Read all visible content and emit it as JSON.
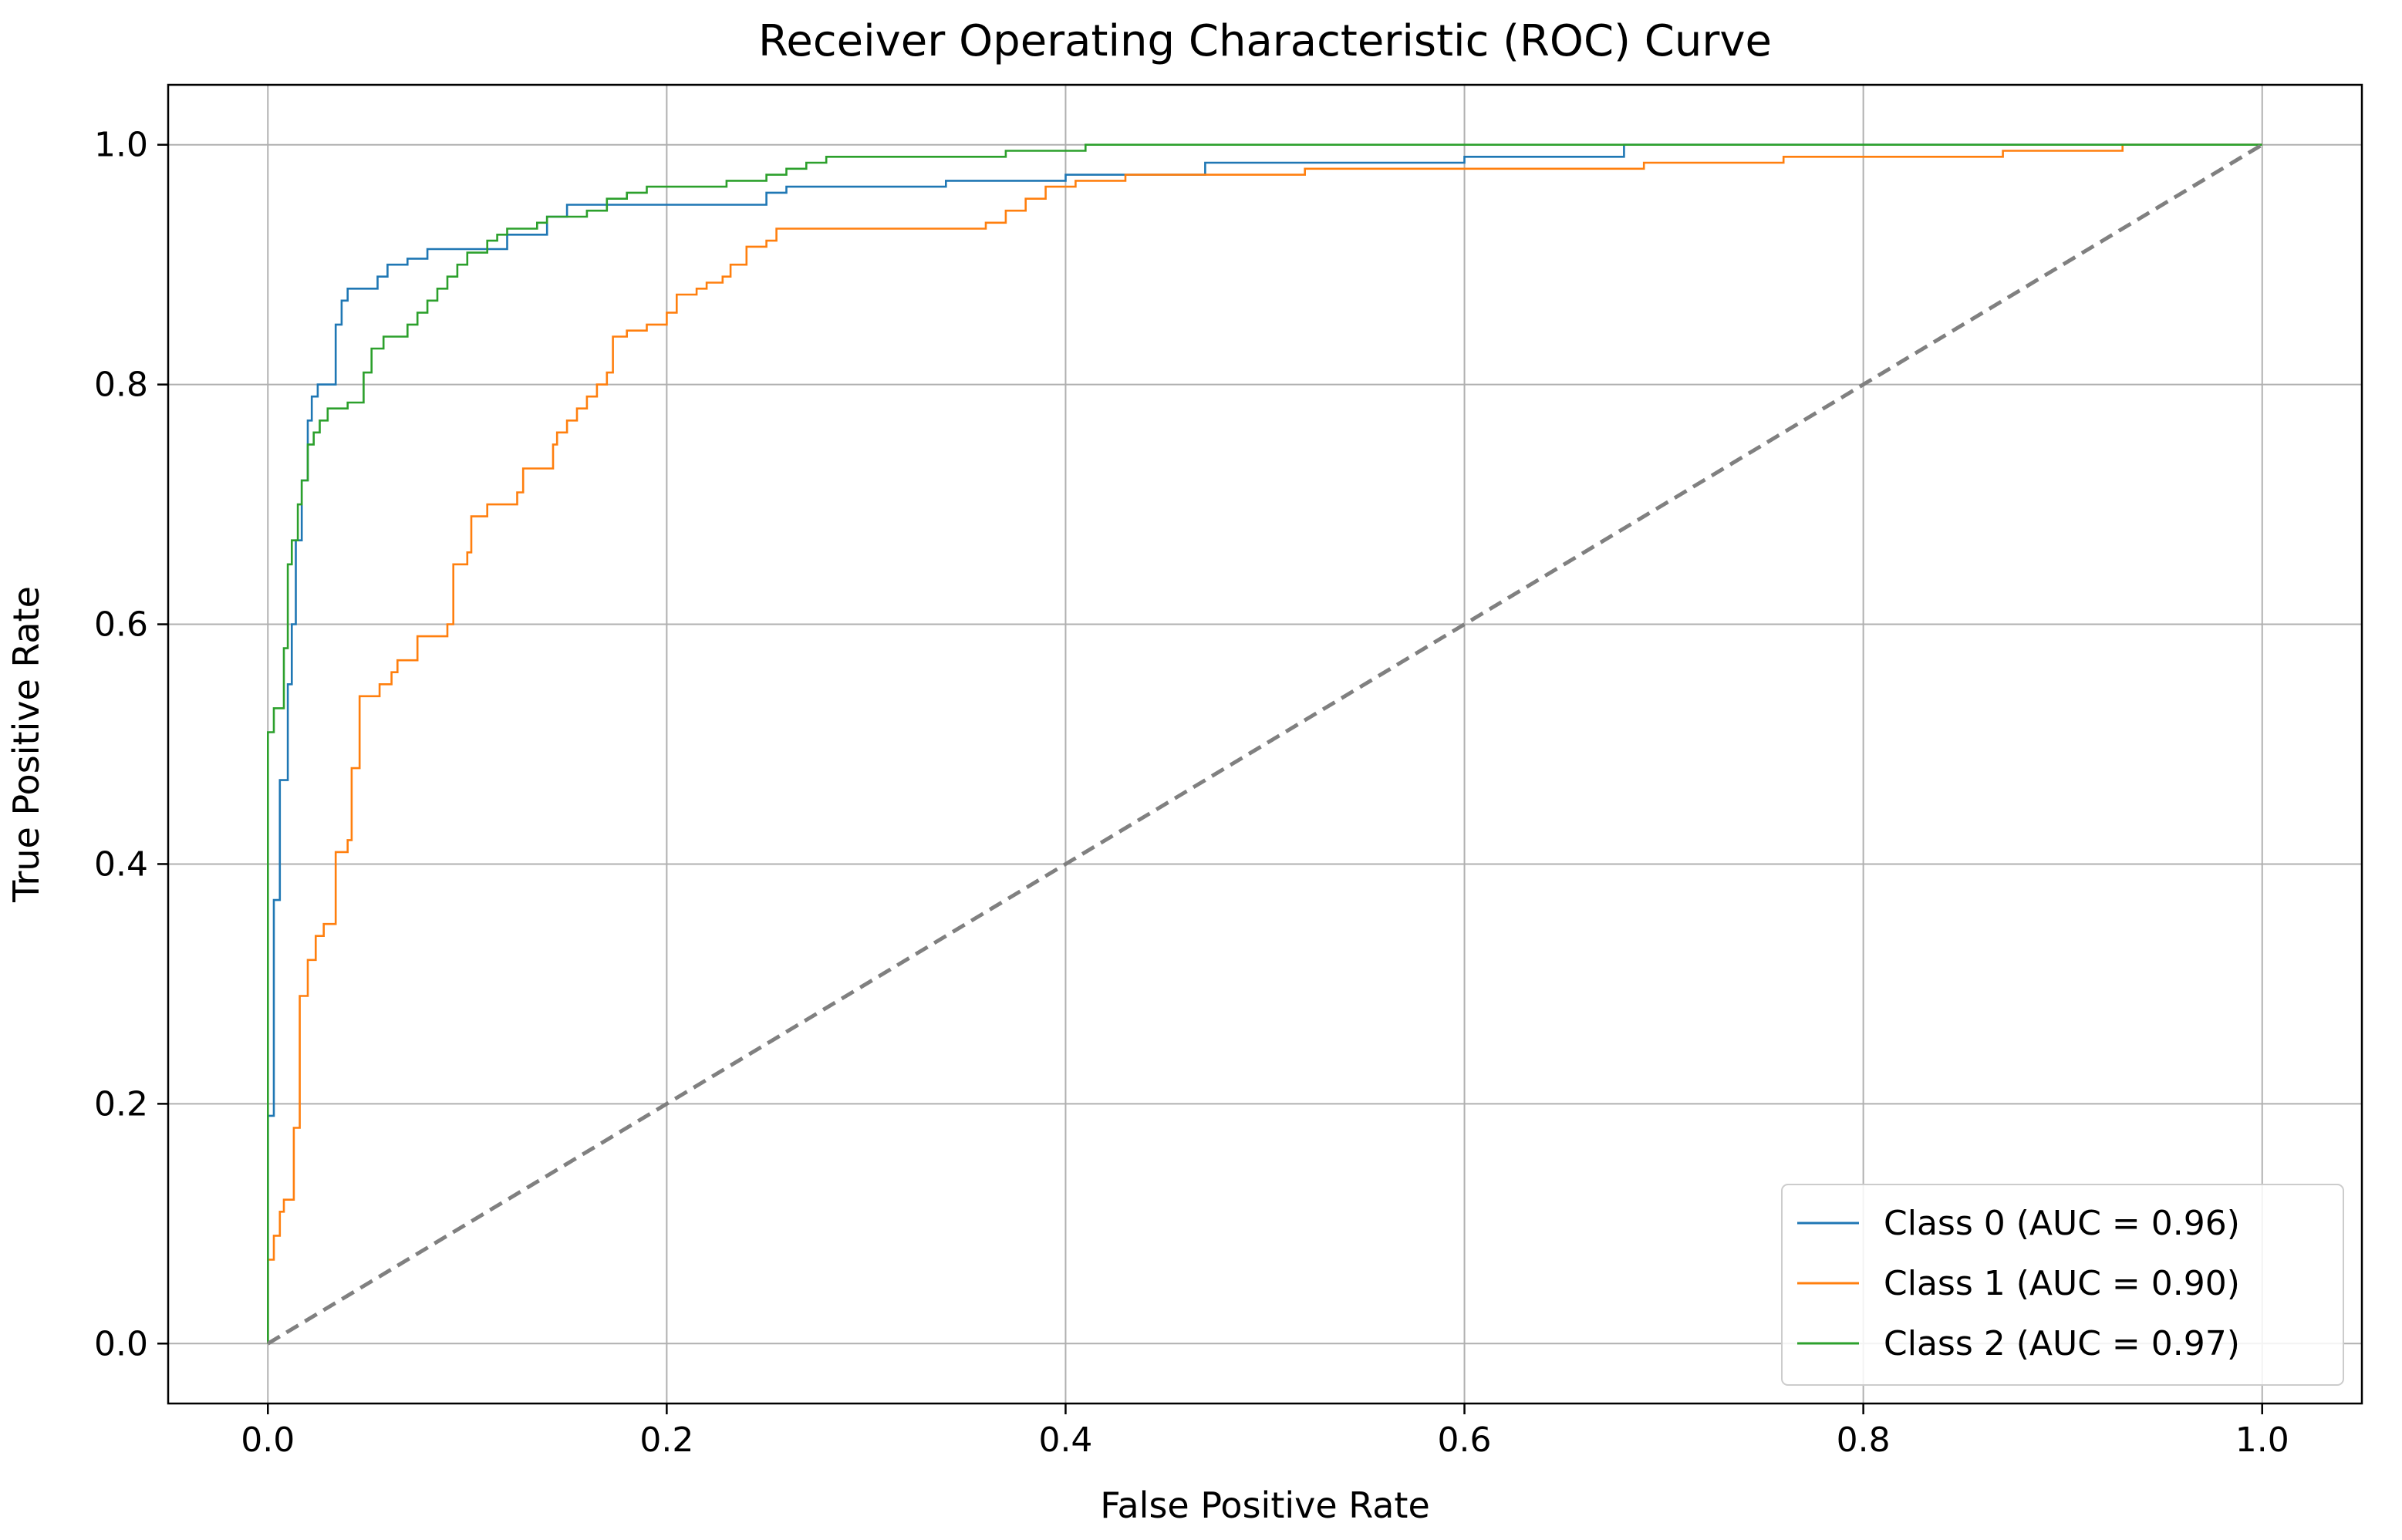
{
  "chart_data": {
    "type": "line",
    "title": "Receiver Operating Characteristic (ROC) Curve",
    "xlabel": "False Positive Rate",
    "ylabel": "True Positive Rate",
    "xlim": [
      -0.05,
      1.05
    ],
    "ylim": [
      -0.05,
      1.05
    ],
    "x_ticks": [
      0.0,
      0.2,
      0.4,
      0.6,
      0.8,
      1.0
    ],
    "y_ticks": [
      0.0,
      0.2,
      0.4,
      0.6,
      0.8,
      1.0
    ],
    "x_tick_labels": [
      "0.0",
      "0.2",
      "0.4",
      "0.6",
      "0.8",
      "1.0"
    ],
    "y_tick_labels": [
      "0.0",
      "0.2",
      "0.4",
      "0.6",
      "0.8",
      "1.0"
    ],
    "grid": true,
    "legend_position": "lower-right",
    "series": [
      {
        "name": "Class 0 (AUC = 0.96)",
        "color": "#1f77b4",
        "points": [
          [
            0,
            0
          ],
          [
            0,
            0.19
          ],
          [
            0.003,
            0.19
          ],
          [
            0.003,
            0.37
          ],
          [
            0.006,
            0.37
          ],
          [
            0.006,
            0.47
          ],
          [
            0.01,
            0.47
          ],
          [
            0.01,
            0.55
          ],
          [
            0.012,
            0.55
          ],
          [
            0.012,
            0.6
          ],
          [
            0.014,
            0.6
          ],
          [
            0.014,
            0.67
          ],
          [
            0.017,
            0.67
          ],
          [
            0.017,
            0.72
          ],
          [
            0.02,
            0.72
          ],
          [
            0.02,
            0.77
          ],
          [
            0.022,
            0.77
          ],
          [
            0.022,
            0.79
          ],
          [
            0.025,
            0.79
          ],
          [
            0.025,
            0.8
          ],
          [
            0.033,
            0.8
          ],
          [
            0.033,
            0.8
          ],
          [
            0.034,
            0.8
          ],
          [
            0.034,
            0.85
          ],
          [
            0.037,
            0.85
          ],
          [
            0.037,
            0.87
          ],
          [
            0.04,
            0.87
          ],
          [
            0.04,
            0.88
          ],
          [
            0.055,
            0.88
          ],
          [
            0.055,
            0.89
          ],
          [
            0.06,
            0.89
          ],
          [
            0.06,
            0.9
          ],
          [
            0.07,
            0.9
          ],
          [
            0.07,
            0.905
          ],
          [
            0.08,
            0.905
          ],
          [
            0.08,
            0.913
          ],
          [
            0.12,
            0.913
          ],
          [
            0.12,
            0.925
          ],
          [
            0.14,
            0.925
          ],
          [
            0.14,
            0.94
          ],
          [
            0.15,
            0.94
          ],
          [
            0.15,
            0.95
          ],
          [
            0.25,
            0.95
          ],
          [
            0.25,
            0.96
          ],
          [
            0.26,
            0.96
          ],
          [
            0.26,
            0.965
          ],
          [
            0.34,
            0.965
          ],
          [
            0.34,
            0.97
          ],
          [
            0.4,
            0.97
          ],
          [
            0.4,
            0.975
          ],
          [
            0.47,
            0.975
          ],
          [
            0.47,
            0.985
          ],
          [
            0.6,
            0.985
          ],
          [
            0.6,
            0.99
          ],
          [
            0.68,
            0.99
          ],
          [
            0.68,
            1.0
          ],
          [
            1.0,
            1.0
          ]
        ]
      },
      {
        "name": "Class 1 (AUC = 0.90)",
        "color": "#ff7f0e",
        "points": [
          [
            0,
            0
          ],
          [
            0,
            0.07
          ],
          [
            0.003,
            0.07
          ],
          [
            0.003,
            0.09
          ],
          [
            0.006,
            0.09
          ],
          [
            0.006,
            0.11
          ],
          [
            0.008,
            0.11
          ],
          [
            0.008,
            0.12
          ],
          [
            0.013,
            0.12
          ],
          [
            0.013,
            0.18
          ],
          [
            0.016,
            0.18
          ],
          [
            0.016,
            0.29
          ],
          [
            0.02,
            0.29
          ],
          [
            0.02,
            0.32
          ],
          [
            0.024,
            0.32
          ],
          [
            0.024,
            0.34
          ],
          [
            0.028,
            0.34
          ],
          [
            0.028,
            0.35
          ],
          [
            0.034,
            0.35
          ],
          [
            0.034,
            0.41
          ],
          [
            0.04,
            0.41
          ],
          [
            0.04,
            0.42
          ],
          [
            0.042,
            0.42
          ],
          [
            0.042,
            0.48
          ],
          [
            0.046,
            0.48
          ],
          [
            0.046,
            0.54
          ],
          [
            0.056,
            0.54
          ],
          [
            0.056,
            0.55
          ],
          [
            0.062,
            0.55
          ],
          [
            0.062,
            0.56
          ],
          [
            0.065,
            0.56
          ],
          [
            0.065,
            0.57
          ],
          [
            0.075,
            0.57
          ],
          [
            0.075,
            0.59
          ],
          [
            0.09,
            0.59
          ],
          [
            0.09,
            0.6
          ],
          [
            0.093,
            0.6
          ],
          [
            0.093,
            0.65
          ],
          [
            0.1,
            0.65
          ],
          [
            0.1,
            0.66
          ],
          [
            0.102,
            0.66
          ],
          [
            0.102,
            0.69
          ],
          [
            0.11,
            0.69
          ],
          [
            0.11,
            0.7
          ],
          [
            0.125,
            0.7
          ],
          [
            0.125,
            0.71
          ],
          [
            0.128,
            0.71
          ],
          [
            0.128,
            0.73
          ],
          [
            0.13,
            0.73
          ],
          [
            0.13,
            0.73
          ],
          [
            0.143,
            0.73
          ],
          [
            0.143,
            0.75
          ],
          [
            0.145,
            0.75
          ],
          [
            0.145,
            0.76
          ],
          [
            0.15,
            0.76
          ],
          [
            0.15,
            0.77
          ],
          [
            0.155,
            0.77
          ],
          [
            0.155,
            0.78
          ],
          [
            0.16,
            0.78
          ],
          [
            0.16,
            0.79
          ],
          [
            0.165,
            0.79
          ],
          [
            0.165,
            0.8
          ],
          [
            0.17,
            0.8
          ],
          [
            0.17,
            0.81
          ],
          [
            0.173,
            0.81
          ],
          [
            0.173,
            0.84
          ],
          [
            0.18,
            0.84
          ],
          [
            0.18,
            0.845
          ],
          [
            0.19,
            0.845
          ],
          [
            0.19,
            0.85
          ],
          [
            0.2,
            0.85
          ],
          [
            0.2,
            0.86
          ],
          [
            0.205,
            0.86
          ],
          [
            0.205,
            0.875
          ],
          [
            0.215,
            0.875
          ],
          [
            0.215,
            0.88
          ],
          [
            0.22,
            0.88
          ],
          [
            0.22,
            0.885
          ],
          [
            0.228,
            0.885
          ],
          [
            0.228,
            0.89
          ],
          [
            0.232,
            0.89
          ],
          [
            0.232,
            0.9
          ],
          [
            0.24,
            0.9
          ],
          [
            0.24,
            0.915
          ],
          [
            0.25,
            0.915
          ],
          [
            0.25,
            0.92
          ],
          [
            0.255,
            0.92
          ],
          [
            0.255,
            0.93
          ],
          [
            0.36,
            0.93
          ],
          [
            0.36,
            0.935
          ],
          [
            0.37,
            0.935
          ],
          [
            0.37,
            0.945
          ],
          [
            0.38,
            0.945
          ],
          [
            0.38,
            0.955
          ],
          [
            0.39,
            0.955
          ],
          [
            0.39,
            0.965
          ],
          [
            0.405,
            0.965
          ],
          [
            0.405,
            0.97
          ],
          [
            0.43,
            0.97
          ],
          [
            0.43,
            0.975
          ],
          [
            0.52,
            0.975
          ],
          [
            0.52,
            0.98
          ],
          [
            0.6,
            0.98
          ],
          [
            0.6,
            0.98
          ],
          [
            0.69,
            0.98
          ],
          [
            0.69,
            0.985
          ],
          [
            0.76,
            0.985
          ],
          [
            0.76,
            0.99
          ],
          [
            0.87,
            0.99
          ],
          [
            0.87,
            0.995
          ],
          [
            0.93,
            0.995
          ],
          [
            0.93,
            1.0
          ],
          [
            1.0,
            1.0
          ]
        ]
      },
      {
        "name": "Class 2 (AUC = 0.97)",
        "color": "#2ca02c",
        "points": [
          [
            0,
            0
          ],
          [
            0,
            0.51
          ],
          [
            0.003,
            0.51
          ],
          [
            0.003,
            0.53
          ],
          [
            0.008,
            0.53
          ],
          [
            0.008,
            0.58
          ],
          [
            0.01,
            0.58
          ],
          [
            0.01,
            0.65
          ],
          [
            0.012,
            0.65
          ],
          [
            0.012,
            0.67
          ],
          [
            0.015,
            0.67
          ],
          [
            0.015,
            0.7
          ],
          [
            0.017,
            0.7
          ],
          [
            0.017,
            0.72
          ],
          [
            0.02,
            0.72
          ],
          [
            0.02,
            0.75
          ],
          [
            0.023,
            0.75
          ],
          [
            0.023,
            0.76
          ],
          [
            0.026,
            0.76
          ],
          [
            0.026,
            0.77
          ],
          [
            0.03,
            0.77
          ],
          [
            0.03,
            0.78
          ],
          [
            0.04,
            0.78
          ],
          [
            0.04,
            0.785
          ],
          [
            0.048,
            0.785
          ],
          [
            0.048,
            0.81
          ],
          [
            0.052,
            0.81
          ],
          [
            0.052,
            0.83
          ],
          [
            0.058,
            0.83
          ],
          [
            0.058,
            0.84
          ],
          [
            0.07,
            0.84
          ],
          [
            0.07,
            0.85
          ],
          [
            0.075,
            0.85
          ],
          [
            0.075,
            0.86
          ],
          [
            0.08,
            0.86
          ],
          [
            0.08,
            0.87
          ],
          [
            0.085,
            0.87
          ],
          [
            0.085,
            0.88
          ],
          [
            0.09,
            0.88
          ],
          [
            0.09,
            0.89
          ],
          [
            0.095,
            0.89
          ],
          [
            0.095,
            0.9
          ],
          [
            0.1,
            0.9
          ],
          [
            0.1,
            0.91
          ],
          [
            0.11,
            0.91
          ],
          [
            0.11,
            0.92
          ],
          [
            0.115,
            0.92
          ],
          [
            0.115,
            0.925
          ],
          [
            0.12,
            0.925
          ],
          [
            0.12,
            0.93
          ],
          [
            0.135,
            0.93
          ],
          [
            0.135,
            0.935
          ],
          [
            0.14,
            0.935
          ],
          [
            0.14,
            0.94
          ],
          [
            0.16,
            0.94
          ],
          [
            0.16,
            0.945
          ],
          [
            0.17,
            0.945
          ],
          [
            0.17,
            0.955
          ],
          [
            0.18,
            0.955
          ],
          [
            0.18,
            0.96
          ],
          [
            0.19,
            0.96
          ],
          [
            0.19,
            0.965
          ],
          [
            0.23,
            0.965
          ],
          [
            0.23,
            0.97
          ],
          [
            0.25,
            0.97
          ],
          [
            0.25,
            0.975
          ],
          [
            0.26,
            0.975
          ],
          [
            0.26,
            0.98
          ],
          [
            0.27,
            0.98
          ],
          [
            0.27,
            0.985
          ],
          [
            0.28,
            0.985
          ],
          [
            0.28,
            0.99
          ],
          [
            0.37,
            0.99
          ],
          [
            0.37,
            0.995
          ],
          [
            0.41,
            0.995
          ],
          [
            0.41,
            1.0
          ],
          [
            1.0,
            1.0
          ]
        ]
      },
      {
        "name": "reference",
        "color": "#808080",
        "dashed": true,
        "points": [
          [
            0,
            0
          ],
          [
            1,
            1
          ]
        ]
      }
    ]
  }
}
